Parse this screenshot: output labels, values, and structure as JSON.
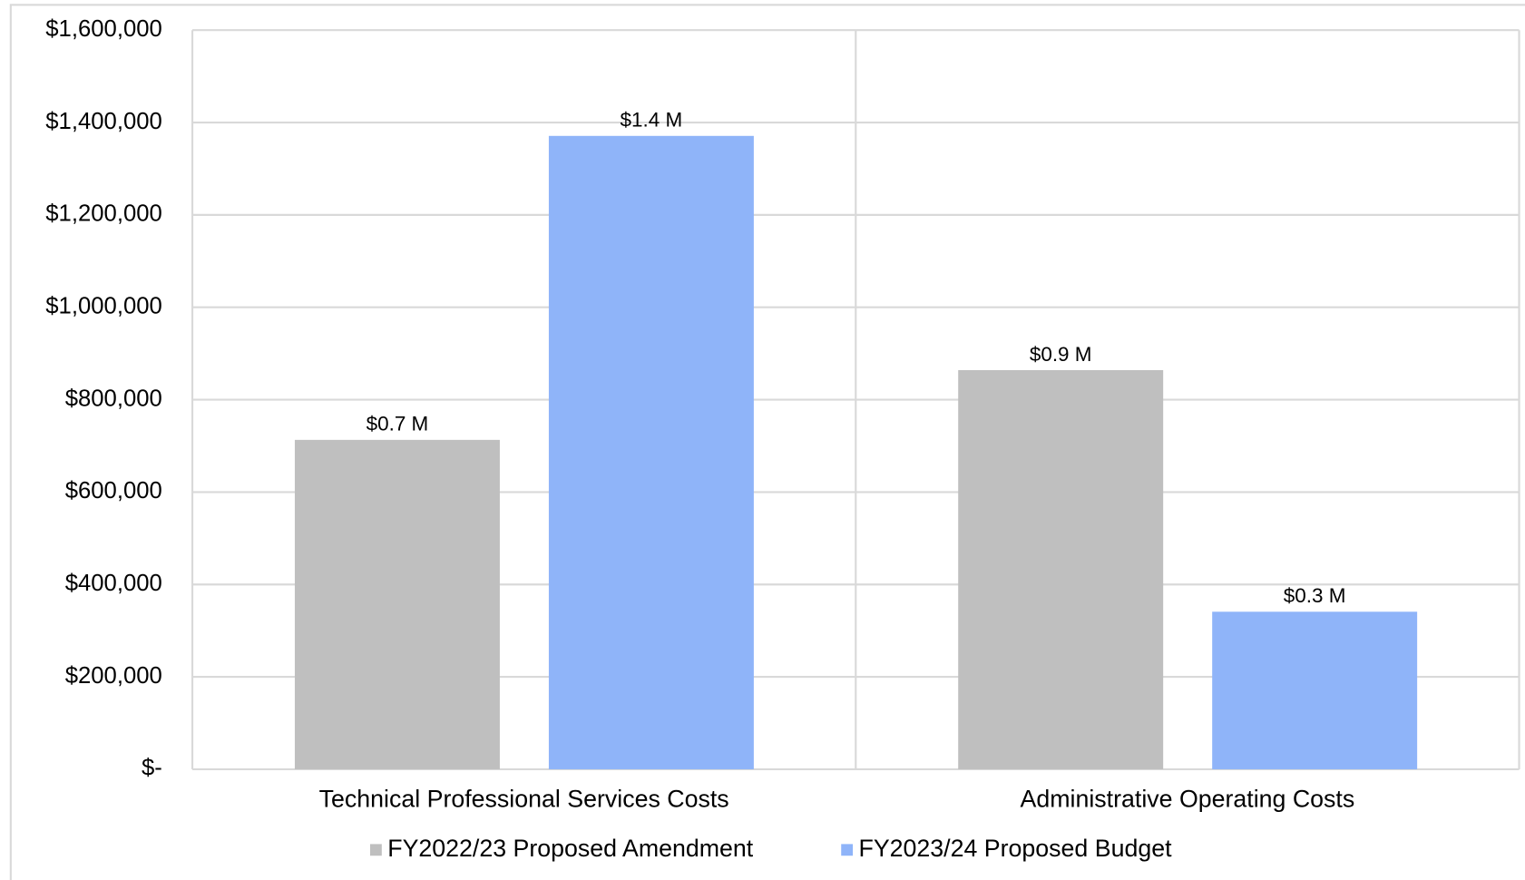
{
  "chart_data": {
    "type": "bar",
    "categories": [
      "Technical Professional Services Costs",
      "Administrative Operating Costs"
    ],
    "series": [
      {
        "name": "FY2022/23 Proposed Amendment",
        "color": "#bfbfbf",
        "values": [
          713000,
          864000
        ],
        "value_labels": [
          "$0.7 M",
          "$0.9 M"
        ]
      },
      {
        "name": "FY2023/24 Proposed Budget",
        "color": "#8fb4f9",
        "values": [
          1371000,
          341000
        ],
        "value_labels": [
          "$1.4 M",
          "$0.3 M"
        ]
      }
    ],
    "ylim": [
      0,
      1600000
    ],
    "yticks": [
      {
        "value": 0,
        "label": "$-"
      },
      {
        "value": 200000,
        "label": "$200,000"
      },
      {
        "value": 400000,
        "label": "$400,000"
      },
      {
        "value": 600000,
        "label": "$600,000"
      },
      {
        "value": 800000,
        "label": "$800,000"
      },
      {
        "value": 1000000,
        "label": "$1,000,000"
      },
      {
        "value": 1200000,
        "label": "$1,200,000"
      },
      {
        "value": 1400000,
        "label": "$1,400,000"
      },
      {
        "value": 1600000,
        "label": "$1,600,000"
      }
    ],
    "grid": true,
    "legend": "bottom"
  }
}
